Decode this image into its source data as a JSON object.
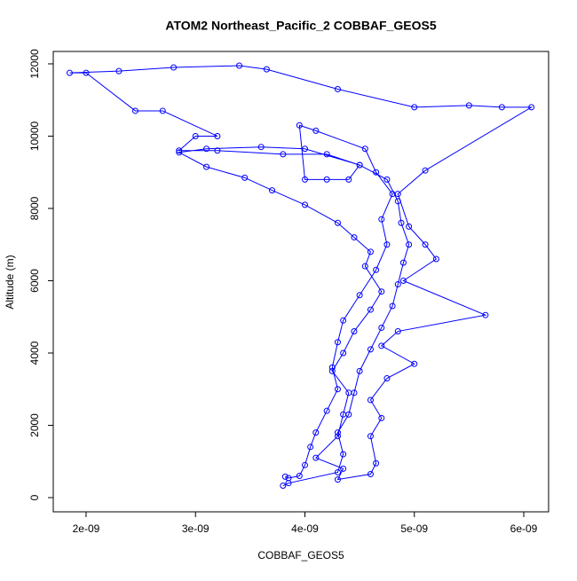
{
  "chart_data": {
    "type": "line",
    "title": "ATOM2 Northeast_Pacific_2 COBBAF_GEOS5",
    "x_label": "COBBAF_GEOS5",
    "y_label": "Altitude (m)",
    "xlim": [
      1.7e-09,
      6.227e-09
    ],
    "ylim": [
      -393,
      12343
    ],
    "xticks": [
      {
        "value": 2e-09,
        "label": "2e-09"
      },
      {
        "value": 3e-09,
        "label": "3e-09"
      },
      {
        "value": 4e-09,
        "label": "4e-09"
      },
      {
        "value": 5e-09,
        "label": "5e-09"
      },
      {
        "value": 6e-09,
        "label": "6e-09"
      }
    ],
    "yticks": [
      0,
      2000,
      4000,
      6000,
      8000,
      10000,
      12000
    ],
    "series": [
      {
        "color": "#0000ff",
        "x": [
          3.8e-09,
          3.85e-09,
          4.3e-09,
          4.35e-09,
          4.3e-09,
          4.4e-09,
          4.45e-09,
          4.5e-09,
          4.6e-09,
          4.7e-09,
          4.8e-09,
          4.85e-09,
          4.9e-09,
          4.95e-09,
          4.88e-09,
          4.85e-09,
          4.75e-09,
          4.5e-09,
          4.2e-09,
          3.8e-09,
          3.2e-09,
          2.85e-09,
          3e-09,
          3.2e-09,
          2.7e-09,
          2.45e-09,
          2e-09,
          1.85e-09,
          2.3e-09,
          2.8e-09,
          3.4e-09,
          3.65e-09,
          4.3e-09,
          5e-09,
          5.5e-09,
          5.8e-09,
          6.07e-09,
          5.1e-09,
          4.85e-09,
          4.95e-09,
          5.1e-09,
          5.2e-09,
          4.9e-09,
          5.65e-09,
          4.85e-09,
          4.7e-09,
          5e-09,
          4.75e-09,
          4.6e-09,
          4.7e-09,
          4.6e-09,
          4.65e-09,
          4.6e-09,
          4.3e-09,
          4.35e-09,
          4.1e-09,
          4.3e-09,
          4.35e-09,
          4.4e-09,
          4.25e-09,
          4.35e-09,
          4.45e-09,
          4.6e-09,
          4.7e-09,
          4.55e-09,
          4.6e-09,
          4.45e-09,
          4.3e-09,
          4e-09,
          3.7e-09,
          3.45e-09,
          3.1e-09,
          2.85e-09,
          3.1e-09,
          3.6e-09,
          4e-09,
          4.5e-09,
          4.4e-09,
          4.2e-09,
          4e-09,
          3.95e-09,
          4.1e-09,
          4.55e-09,
          4.65e-09,
          4.8e-09,
          4.7e-09,
          4.75e-09,
          4.65e-09,
          4.5e-09,
          4.35e-09,
          4.3e-09,
          4.25e-09,
          4.3e-09,
          4.2e-09,
          4.1e-09,
          4.05e-09,
          4e-09,
          3.95e-09,
          3.85e-09,
          3.82e-09
        ],
        "values": [
          330,
          400,
          700,
          1200,
          1800,
          2300,
          2900,
          3500,
          4100,
          4700,
          5300,
          5900,
          6500,
          7000,
          7600,
          8200,
          8800,
          9200,
          9500,
          9500,
          9600,
          9600,
          10000,
          10000,
          10700,
          10700,
          11750,
          11750,
          11800,
          11900,
          11950,
          11850,
          11300,
          10800,
          10850,
          10800,
          10800,
          9050,
          8400,
          7500,
          7000,
          6600,
          6000,
          5050,
          4600,
          4200,
          3700,
          3300,
          2700,
          2200,
          1700,
          950,
          650,
          500,
          800,
          1100,
          1700,
          2300,
          2900,
          3500,
          4000,
          4600,
          5200,
          5700,
          6400,
          6800,
          7200,
          7600,
          8100,
          8500,
          8850,
          9150,
          9550,
          9650,
          9700,
          9650,
          9200,
          8800,
          8800,
          8800,
          10300,
          10150,
          9650,
          9000,
          8400,
          7700,
          7000,
          6300,
          5600,
          4900,
          4300,
          3600,
          3000,
          2400,
          1800,
          1400,
          900,
          600,
          540,
          580
        ]
      }
    ]
  }
}
